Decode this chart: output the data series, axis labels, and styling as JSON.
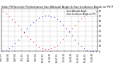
{
  "title": "Solar PV/Inverter Performance Sun Altitude Angle & Sun Incidence Angle on PV Panels",
  "blue_label": "Sun Altitude Angle",
  "red_label": "Sun Incidence Angle on PV",
  "ylim": [
    0,
    85
  ],
  "xlim": [
    0,
    96
  ],
  "blue_color": "#0000ff",
  "red_color": "#ff0000",
  "bg_color": "#ffffff",
  "grid_color": "#bbbbbb",
  "title_fontsize": 2.8,
  "legend_fontsize": 2.2,
  "tick_fontsize": 2.2,
  "blue_x": [
    2,
    5,
    8,
    11,
    14,
    17,
    20,
    23,
    26,
    29,
    32,
    35,
    38,
    41,
    44,
    47,
    50,
    53,
    56,
    59,
    62,
    65,
    68,
    71,
    74,
    77,
    80,
    83,
    86,
    89,
    92,
    95
  ],
  "blue_y": [
    0,
    2,
    5,
    10,
    16,
    23,
    30,
    38,
    45,
    52,
    58,
    63,
    67,
    70,
    71,
    71,
    70,
    68,
    64,
    59,
    53,
    46,
    39,
    31,
    23,
    16,
    10,
    5,
    2,
    0,
    0,
    0
  ],
  "red_x": [
    2,
    5,
    8,
    11,
    14,
    17,
    20,
    23,
    26,
    29,
    32,
    35,
    38,
    41,
    44,
    47,
    50,
    53,
    56,
    59,
    62,
    65,
    68,
    71,
    74,
    77,
    80,
    83,
    86,
    89,
    92,
    95
  ],
  "red_y": [
    80,
    75,
    70,
    64,
    58,
    51,
    44,
    37,
    30,
    24,
    18,
    13,
    9,
    6,
    4,
    4,
    5,
    8,
    12,
    17,
    24,
    31,
    38,
    45,
    52,
    59,
    65,
    70,
    74,
    78,
    80,
    80
  ],
  "yticks": [
    0,
    10,
    20,
    30,
    40,
    50,
    60,
    70,
    80
  ],
  "xtick_labels": [
    "4:01:15",
    "5:04:35",
    "6:07:55",
    "7:11:15",
    "8:14:35",
    "9:17:55",
    "10:21:15",
    "11:24:35",
    "12:27:55",
    "13:31:15",
    "14:34:35",
    "15:37:55",
    "16:41:15",
    "17:44:35"
  ],
  "xtick_positions": [
    0,
    7,
    14,
    21,
    28,
    35,
    42,
    49,
    56,
    63,
    70,
    77,
    84,
    91
  ]
}
